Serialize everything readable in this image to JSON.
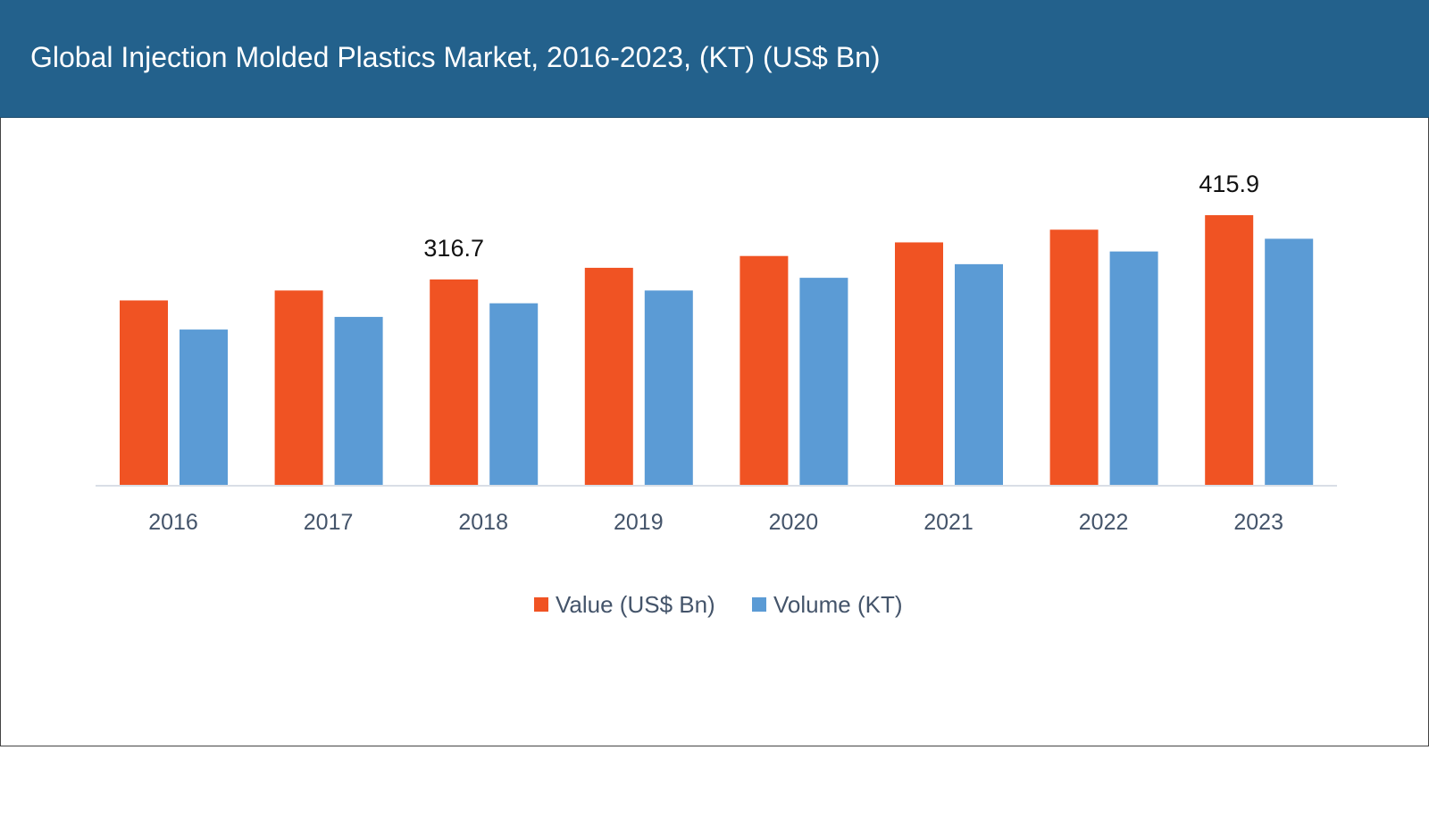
{
  "title": "Global Injection Molded Plastics Market, 2016-2023, (KT) (US$ Bn)",
  "chart_data": {
    "type": "bar",
    "title": "Global Injection Molded Plastics Market, 2016-2023, (KT) (US$ Bn)",
    "categories": [
      "2016",
      "2017",
      "2018",
      "2019",
      "2020",
      "2021",
      "2022",
      "2023"
    ],
    "series": [
      {
        "name": "Value (US$ Bn)",
        "color": "#f05323",
        "values": [
          284.4,
          299.7,
          316.7,
          334.7,
          352.9,
          373.9,
          393.5,
          415.9
        ]
      },
      {
        "name": "Volume (KT)",
        "color": "#5b9bd5",
        "values": [
          239.5,
          259.0,
          280.0,
          299.7,
          319.3,
          340.3,
          359.9,
          379.5
        ]
      }
    ],
    "data_labels": [
      {
        "series": 0,
        "category": "2018",
        "text": "316.7"
      },
      {
        "series": 0,
        "category": "2023",
        "text": "415.9"
      }
    ],
    "ylim": [
      0,
      450
    ],
    "y_axis_visible": false,
    "grid": false,
    "legend": "bottom",
    "header_color": "#23618c"
  }
}
